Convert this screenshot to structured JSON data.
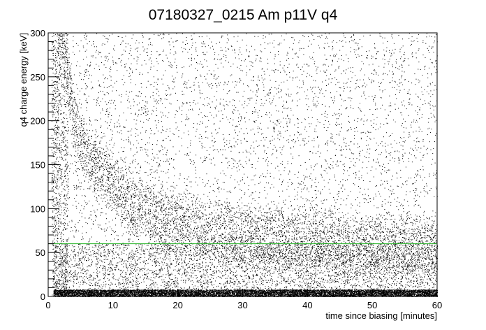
{
  "chart_data": {
    "type": "scatter",
    "title": "07180327_0215 Am p11V q4",
    "xlabel": "time since biasing [minutes]",
    "ylabel": "q4 charge energy [keV]",
    "xlim": [
      0,
      60
    ],
    "ylim": [
      0,
      300
    ],
    "x_ticks": [
      0,
      10,
      20,
      30,
      40,
      50,
      60
    ],
    "y_ticks": [
      0,
      50,
      100,
      150,
      200,
      250,
      300
    ],
    "grid": false,
    "legend": "none",
    "marker_color": "#000000",
    "reference_line": {
      "y": 60,
      "color": "#22b222"
    },
    "decay_band": {
      "description_points": [
        {
          "x": 2,
          "y": 300
        },
        {
          "x": 3,
          "y": 250
        },
        {
          "x": 4,
          "y": 200
        },
        {
          "x": 6,
          "y": 160
        },
        {
          "x": 8,
          "y": 140
        },
        {
          "x": 10,
          "y": 125
        },
        {
          "x": 13,
          "y": 105
        },
        {
          "x": 17,
          "y": 90
        },
        {
          "x": 22,
          "y": 80
        },
        {
          "x": 30,
          "y": 70
        },
        {
          "x": 40,
          "y": 63
        },
        {
          "x": 50,
          "y": 58
        },
        {
          "x": 60,
          "y": 55
        }
      ]
    },
    "noise_band": {
      "y_min": 0,
      "y_max": 8
    },
    "early_spike": {
      "x_min": 0.5,
      "x_max": 3,
      "y_min": 0,
      "y_max": 300
    }
  }
}
